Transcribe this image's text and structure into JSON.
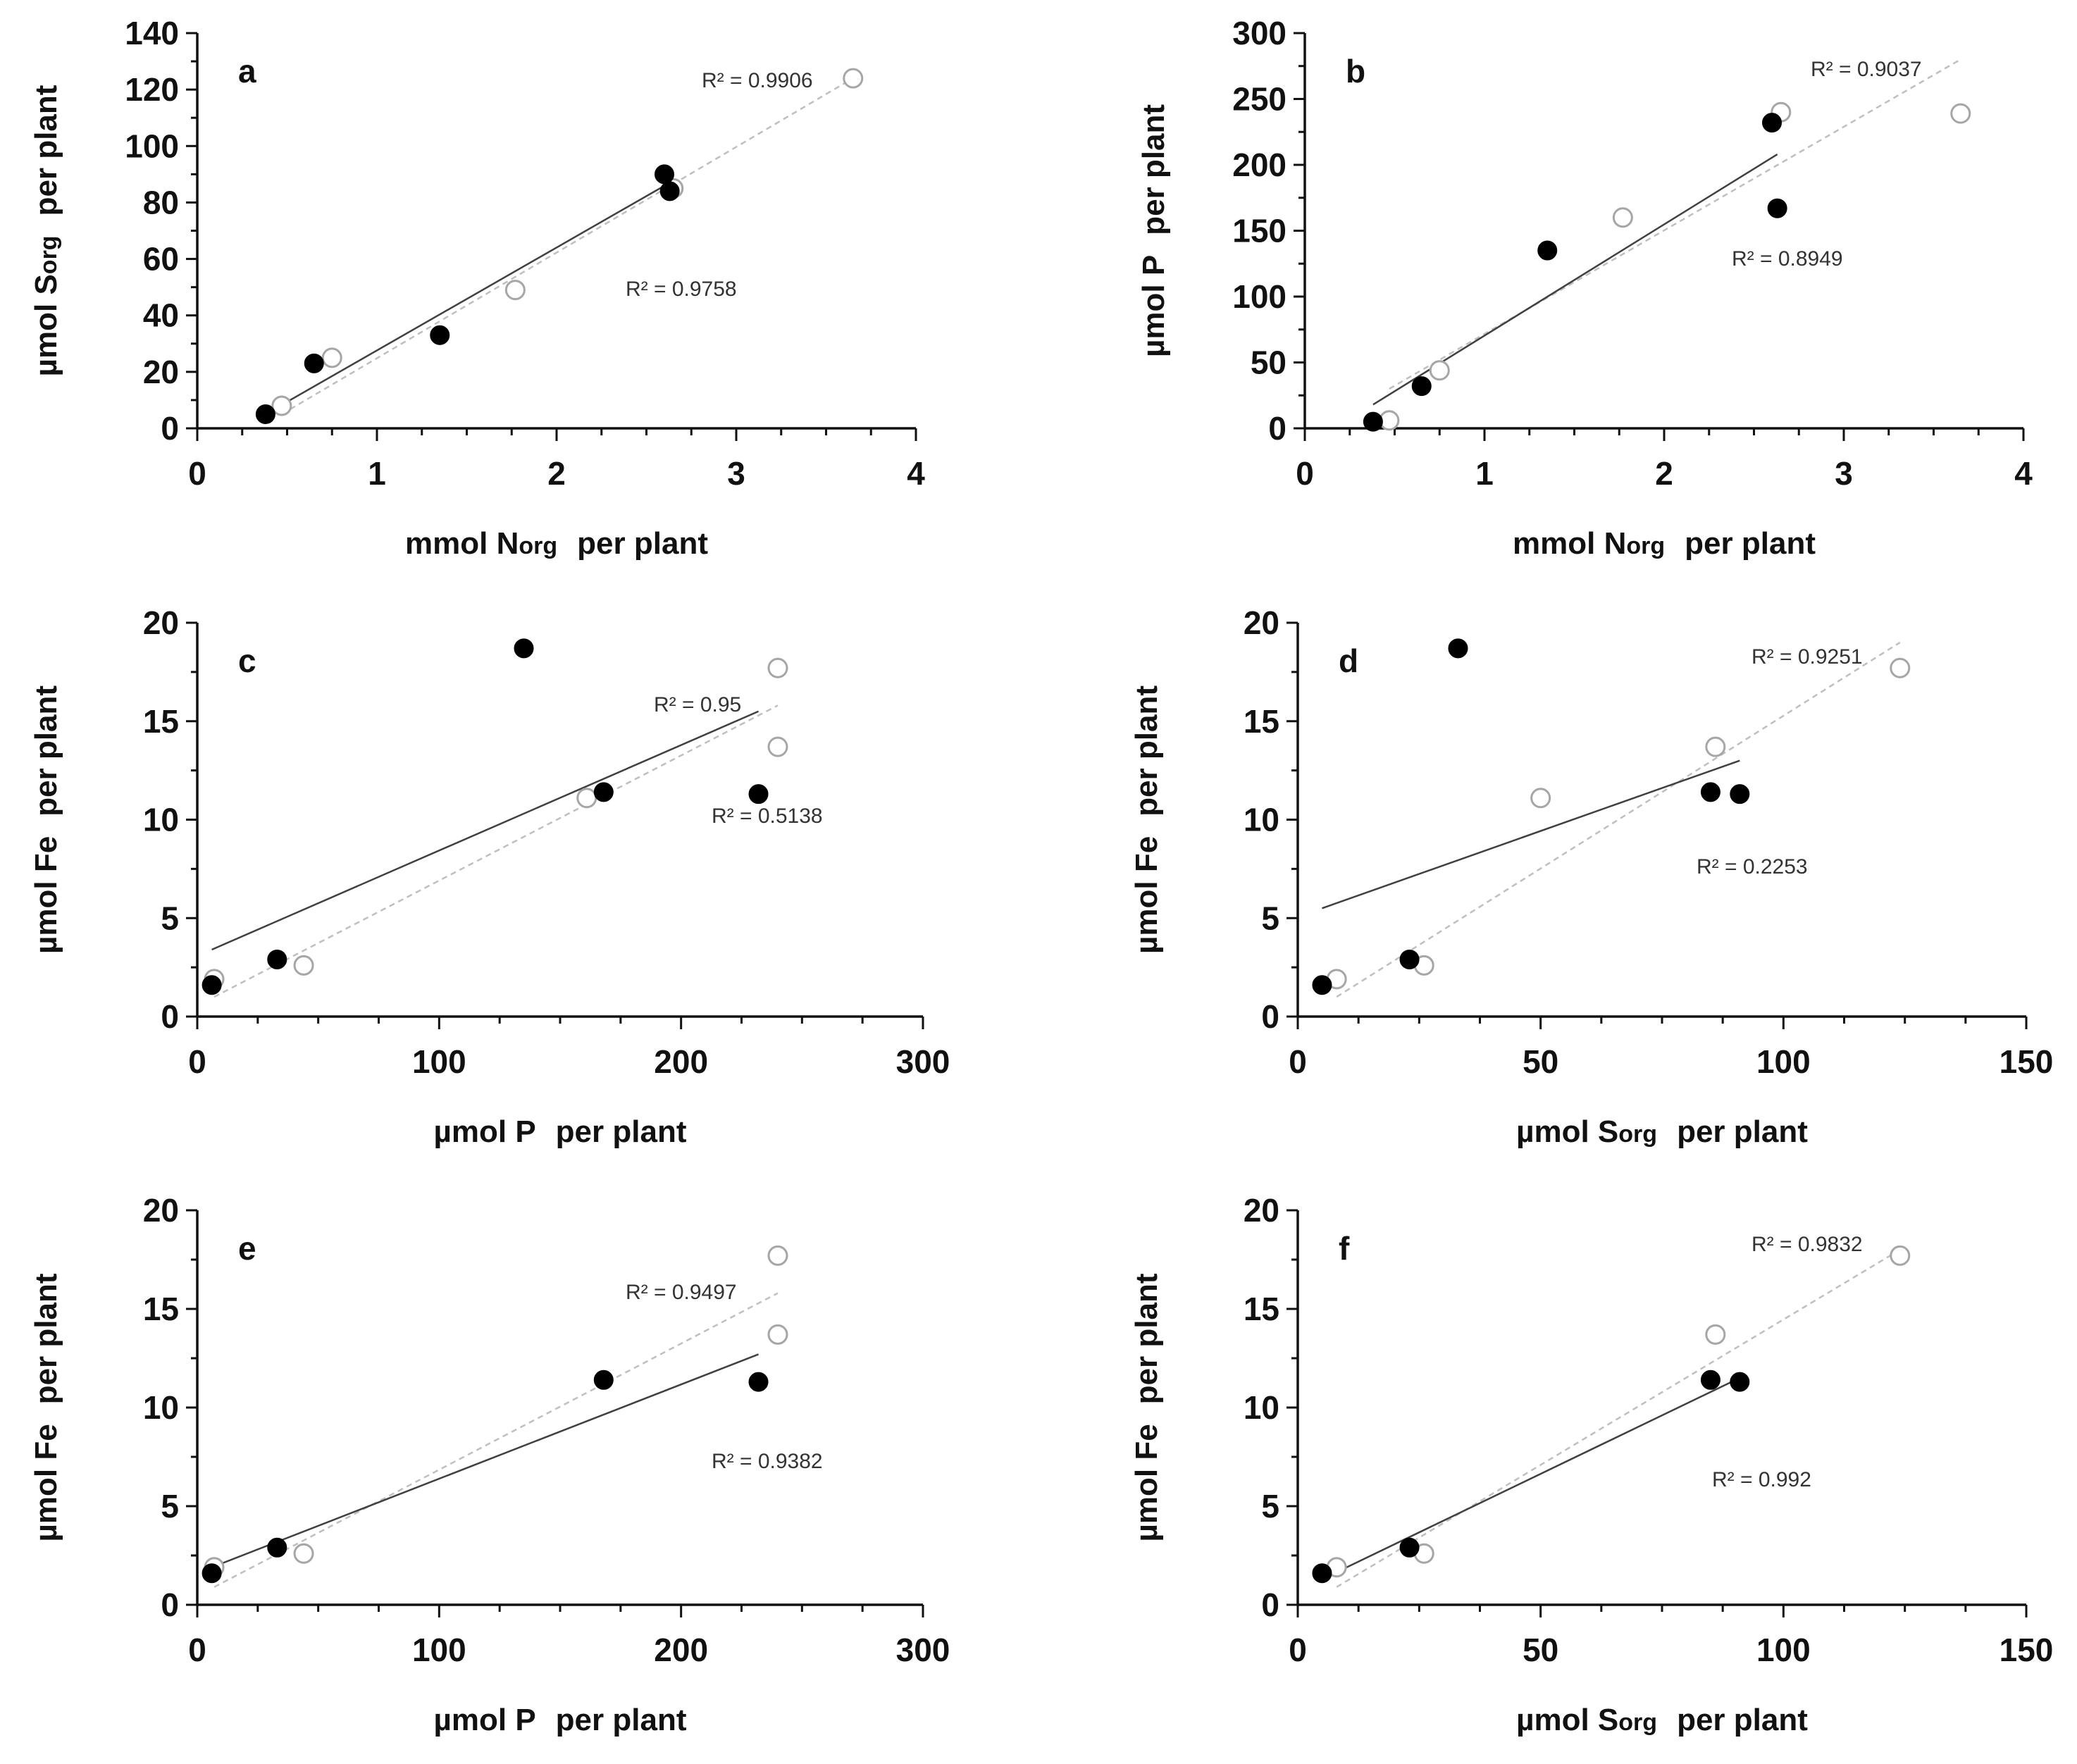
{
  "chart_data": [
    {
      "panel": "a",
      "type": "scatter",
      "xlim": [
        0,
        4
      ],
      "ylim": [
        0,
        140
      ],
      "xticks": [
        0,
        1,
        2,
        3,
        4
      ],
      "yticks": [
        0,
        20,
        40,
        60,
        80,
        100,
        120,
        140
      ],
      "xlabel": {
        "main": "mmol N",
        "sub": "org",
        "suffix": "per plant"
      },
      "ylabel": {
        "main": "µmol S",
        "sub": "org",
        "suffix": "per plant"
      },
      "series": [
        {
          "name": "filled",
          "points": [
            [
              0.38,
              5
            ],
            [
              0.65,
              23
            ],
            [
              1.35,
              33
            ],
            [
              2.6,
              90
            ],
            [
              2.63,
              84
            ]
          ],
          "trend": {
            "from": [
              0.38,
              5
            ],
            "to": [
              2.63,
              87
            ],
            "r2": "R² = 0.9758"
          }
        },
        {
          "name": "open",
          "points": [
            [
              0.47,
              8
            ],
            [
              0.75,
              25
            ],
            [
              1.77,
              49
            ],
            [
              2.65,
              85
            ],
            [
              3.65,
              124
            ]
          ],
          "trend": {
            "from": [
              0.47,
              5
            ],
            "to": [
              3.65,
              124
            ],
            "r2": "R² = 0.9906"
          }
        }
      ]
    },
    {
      "panel": "b",
      "type": "scatter",
      "xlim": [
        0,
        4
      ],
      "ylim": [
        0,
        300
      ],
      "xticks": [
        0,
        1,
        2,
        3,
        4
      ],
      "yticks": [
        0,
        50,
        100,
        150,
        200,
        250,
        300
      ],
      "xlabel": {
        "main": "mmol N",
        "sub": "org",
        "suffix": "per plant"
      },
      "ylabel": {
        "main": "µmol P",
        "sub": "",
        "suffix": "per plant"
      },
      "series": [
        {
          "name": "filled",
          "points": [
            [
              0.38,
              5
            ],
            [
              0.65,
              32
            ],
            [
              1.35,
              135
            ],
            [
              2.6,
              232
            ],
            [
              2.63,
              167
            ]
          ],
          "trend": {
            "from": [
              0.38,
              18
            ],
            "to": [
              2.63,
              208
            ],
            "r2": "R² = 0.8949"
          }
        },
        {
          "name": "open",
          "points": [
            [
              0.47,
              6
            ],
            [
              0.75,
              44
            ],
            [
              1.77,
              160
            ],
            [
              2.65,
              240
            ],
            [
              3.65,
              239
            ]
          ],
          "trend": {
            "from": [
              0.47,
              30
            ],
            "to": [
              3.65,
              280
            ],
            "r2": "R² = 0.9037"
          }
        }
      ]
    },
    {
      "panel": "c",
      "type": "scatter",
      "xlim": [
        0,
        300
      ],
      "ylim": [
        0,
        20
      ],
      "xticks": [
        0,
        100,
        200,
        300
      ],
      "yticks": [
        0,
        5,
        10,
        15,
        20
      ],
      "xlabel": {
        "main": "µmol P",
        "sub": "",
        "suffix": "per plant"
      },
      "ylabel": {
        "main": "µmol Fe",
        "sub": "",
        "suffix": "per plant"
      },
      "series": [
        {
          "name": "filled",
          "points": [
            [
              6,
              1.6
            ],
            [
              33,
              2.9
            ],
            [
              135,
              18.7
            ],
            [
              168,
              11.4
            ],
            [
              232,
              11.3
            ]
          ],
          "trend": {
            "from": [
              6,
              3.4
            ],
            "to": [
              232,
              15.5
            ],
            "r2": "R² = 0.5138"
          }
        },
        {
          "name": "open",
          "points": [
            [
              7,
              1.9
            ],
            [
              44,
              2.6
            ],
            [
              161,
              11.1
            ],
            [
              240,
              17.7
            ],
            [
              240,
              13.7
            ]
          ],
          "trend": {
            "from": [
              7,
              1.0
            ],
            "to": [
              240,
              15.8
            ],
            "r2": "R² = 0.95"
          }
        }
      ]
    },
    {
      "panel": "d",
      "type": "scatter",
      "xlim": [
        0,
        150
      ],
      "ylim": [
        0,
        20
      ],
      "xticks": [
        0,
        50,
        100,
        150
      ],
      "yticks": [
        0,
        5,
        10,
        15,
        20
      ],
      "xlabel": {
        "main": "µmol S",
        "sub": "org",
        "suffix": "per plant"
      },
      "ylabel": {
        "main": "µmol Fe",
        "sub": "",
        "suffix": "per plant"
      },
      "series": [
        {
          "name": "filled",
          "points": [
            [
              5,
              1.6
            ],
            [
              23,
              2.9
            ],
            [
              33,
              18.7
            ],
            [
              85,
              11.4
            ],
            [
              91,
              11.3
            ]
          ],
          "trend": {
            "from": [
              5,
              5.5
            ],
            "to": [
              91,
              13.0
            ],
            "r2": "R² = 0.2253"
          }
        },
        {
          "name": "open",
          "points": [
            [
              8,
              1.9
            ],
            [
              26,
              2.6
            ],
            [
              50,
              11.1
            ],
            [
              86,
              13.7
            ],
            [
              124,
              17.7
            ]
          ],
          "trend": {
            "from": [
              8,
              1.0
            ],
            "to": [
              124,
              19.0
            ],
            "r2": "R² = 0.9251"
          }
        }
      ]
    },
    {
      "panel": "e",
      "type": "scatter",
      "xlim": [
        0,
        300
      ],
      "ylim": [
        0,
        20
      ],
      "xticks": [
        0,
        100,
        200,
        300
      ],
      "yticks": [
        0,
        5,
        10,
        15,
        20
      ],
      "xlabel": {
        "main": "µmol P",
        "sub": "",
        "suffix": "per plant"
      },
      "ylabel": {
        "main": "µmol Fe",
        "sub": "",
        "suffix": "per plant"
      },
      "series": [
        {
          "name": "filled",
          "points": [
            [
              6,
              1.6
            ],
            [
              33,
              2.9
            ],
            [
              168,
              11.4
            ],
            [
              232,
              11.3
            ]
          ],
          "trend": {
            "from": [
              6,
              1.9
            ],
            "to": [
              232,
              12.7
            ],
            "r2": "R² = 0.9382"
          }
        },
        {
          "name": "open",
          "points": [
            [
              7,
              1.9
            ],
            [
              44,
              2.6
            ],
            [
              240,
              17.7
            ],
            [
              240,
              13.7
            ]
          ],
          "trend": {
            "from": [
              7,
              0.9
            ],
            "to": [
              240,
              15.8
            ],
            "r2": "R² = 0.9497"
          }
        }
      ]
    },
    {
      "panel": "f",
      "type": "scatter",
      "xlim": [
        0,
        150
      ],
      "ylim": [
        0,
        20
      ],
      "xticks": [
        0,
        50,
        100,
        150
      ],
      "yticks": [
        0,
        5,
        10,
        15,
        20
      ],
      "xlabel": {
        "main": "µmol S",
        "sub": "org",
        "suffix": "per plant"
      },
      "ylabel": {
        "main": "µmol Fe",
        "sub": "",
        "suffix": "per plant"
      },
      "series": [
        {
          "name": "filled",
          "points": [
            [
              5,
              1.6
            ],
            [
              23,
              2.9
            ],
            [
              85,
              11.4
            ],
            [
              91,
              11.3
            ]
          ],
          "trend": {
            "from": [
              5,
              1.3
            ],
            "to": [
              91,
              11.5
            ],
            "r2": "R² = 0.992"
          }
        },
        {
          "name": "open",
          "points": [
            [
              8,
              1.9
            ],
            [
              26,
              2.6
            ],
            [
              86,
              13.7
            ],
            [
              124,
              17.7
            ]
          ],
          "trend": {
            "from": [
              8,
              0.9
            ],
            "to": [
              124,
              18.0
            ],
            "r2": "R² = 0.9832"
          }
        }
      ]
    }
  ],
  "colors": {
    "filled_marker": "#000000",
    "open_marker": "#a6a6a6",
    "filled_trend": "#404040",
    "open_trend": "#bfbfbf"
  }
}
